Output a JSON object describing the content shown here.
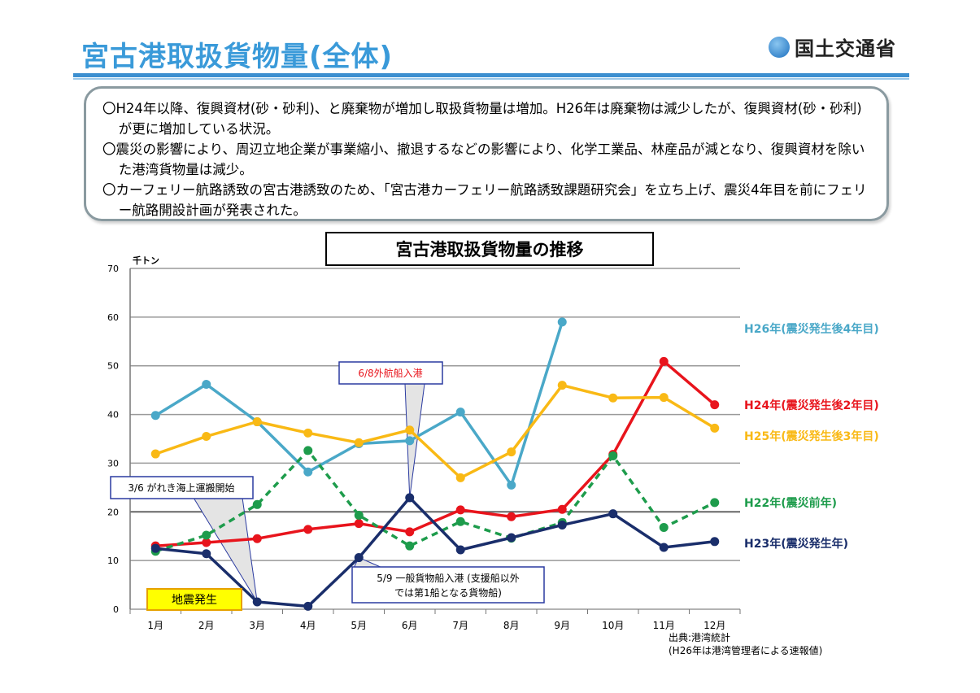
{
  "header": {
    "title": "宮古港取扱貨物量(全体)",
    "logo_text": "国土交通省"
  },
  "summary": {
    "bullets": [
      "〇H24年以降、復興資材(砂・砂利)、と廃棄物が増加し取扱貨物量は増加。H26年は廃棄物は減少したが、復興資材(砂・砂利)が更に増加している状況。",
      "〇震災の影響により、周辺立地企業が事業縮小、撤退するなどの影響により、化学工業品、林産品が減となり、復興資材を除いた港湾貨物量は減少。",
      "〇カーフェリー航路誘致の宮古港誘致のため、「宮古港カーフェリー航路誘致課題研究会」を立ち上げ、震災4年目を前にフェリー航路開設計画が発表された。"
    ]
  },
  "chart_data": {
    "type": "line",
    "title": "宮古港取扱貨物量の推移",
    "ylabel": "千トン",
    "xlabel": "",
    "ylim": [
      0,
      70
    ],
    "yticks": [
      0,
      10,
      20,
      30,
      40,
      50,
      60,
      70
    ],
    "categories": [
      "1月",
      "2月",
      "3月",
      "4月",
      "5月",
      "6月",
      "7月",
      "8月",
      "9月",
      "10月",
      "11月",
      "12月"
    ],
    "grid": true,
    "legend_placement": "right",
    "series": [
      {
        "name": "H26年(震災発生後4年目)",
        "color": "#4aa8c8",
        "dashed": false,
        "values": [
          39.8,
          46.2,
          38.5,
          28.2,
          34.0,
          34.6,
          40.5,
          25.5,
          59.0,
          null,
          null,
          null
        ]
      },
      {
        "name": "H24年(震災発生後2年目)",
        "color": "#e8141c",
        "dashed": false,
        "values": [
          13.0,
          13.7,
          14.5,
          16.4,
          17.6,
          15.9,
          20.4,
          19.0,
          20.5,
          31.8,
          50.9,
          42.0
        ]
      },
      {
        "name": "H25年(震災発生後3年目)",
        "color": "#f9b915",
        "dashed": false,
        "values": [
          31.9,
          35.5,
          38.5,
          36.2,
          34.2,
          36.8,
          27.0,
          32.3,
          46.0,
          43.4,
          43.5,
          37.2
        ]
      },
      {
        "name": "H22年(震災前年)",
        "color": "#1e9c4c",
        "dashed": true,
        "values": [
          11.9,
          15.2,
          21.5,
          32.6,
          19.3,
          13.0,
          18.0,
          14.6,
          17.8,
          31.5,
          16.8,
          21.9
        ]
      },
      {
        "name": "H23年(震災発生年)",
        "color": "#1a2e6b",
        "dashed": false,
        "values": [
          12.5,
          11.4,
          1.5,
          0.6,
          10.6,
          22.9,
          12.2,
          14.7,
          17.3,
          19.6,
          12.7,
          13.9
        ]
      }
    ],
    "annotations": [
      {
        "text": "6/8外航船入港",
        "color": "#e8141c"
      },
      {
        "text": "3/6 がれき海上運搬開始",
        "color": "#000000"
      },
      {
        "text": "5/9 一般貨物船入港 (支援船以外では第1船となる貨物船)",
        "color": "#000000"
      },
      {
        "text": "地震発生",
        "color": "#000000"
      }
    ]
  },
  "source": {
    "line1": "出典:港湾統計",
    "line2": "(H26年は港湾管理者による速報値)"
  }
}
